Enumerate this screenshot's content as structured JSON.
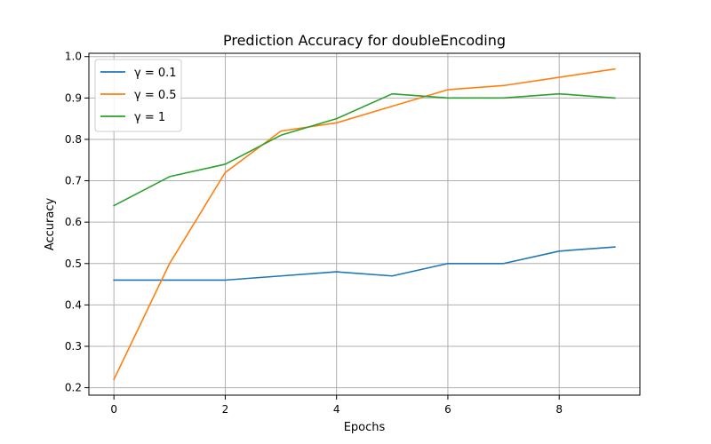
{
  "chart_data": {
    "type": "line",
    "title": "Prediction Accuracy for doubleEncoding",
    "xlabel": "Epochs",
    "ylabel": "Accuracy",
    "x": [
      0,
      1,
      2,
      3,
      4,
      5,
      6,
      7,
      8,
      9
    ],
    "xlim": [
      -0.45,
      9.45
    ],
    "ylim": [
      0.182,
      1.008
    ],
    "xticks": [
      0,
      2,
      4,
      6,
      8
    ],
    "yticks": [
      0.2,
      0.3,
      0.4,
      0.5,
      0.6,
      0.7,
      0.8,
      0.9,
      1.0
    ],
    "grid": true,
    "legend_position": "top-left",
    "series": [
      {
        "name": "γ = 0.1",
        "color": "#1f77b4",
        "values": [
          0.46,
          0.46,
          0.46,
          0.47,
          0.48,
          0.47,
          0.5,
          0.5,
          0.53,
          0.54
        ]
      },
      {
        "name": "γ = 0.5",
        "color": "#ff7f0e",
        "values": [
          0.22,
          0.5,
          0.72,
          0.82,
          0.84,
          0.88,
          0.92,
          0.93,
          0.95,
          0.97
        ]
      },
      {
        "name": "γ = 1",
        "color": "#2ca02c",
        "values": [
          0.64,
          0.71,
          0.74,
          0.81,
          0.85,
          0.91,
          0.9,
          0.9,
          0.91,
          0.9
        ]
      }
    ]
  }
}
